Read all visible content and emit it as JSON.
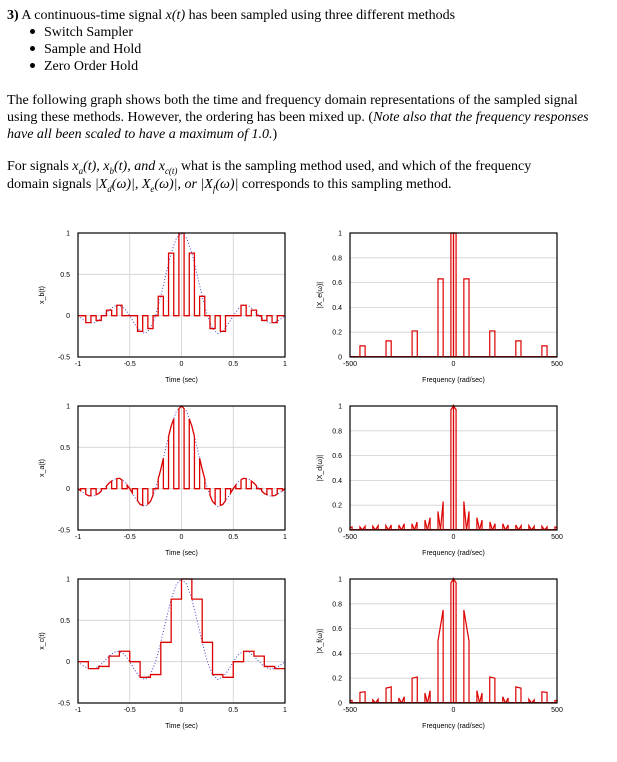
{
  "question": {
    "number": "3)",
    "intro_a": " A continuous-time signal ",
    "intro_math": "x(t)",
    "intro_b": " has been sampled using three different methods",
    "methods": [
      "Switch Sampler",
      "Sample and Hold",
      "Zero Order Hold"
    ],
    "para2_line1": "The following graph shows both the time and frequency domain representations of the sampled signal",
    "para2_line2a": "using these methods. However, the ordering has been mixed up. (",
    "para2_line2b": "Note also that the frequency responses",
    "para2_line3a": "have all been scaled to have a maximum of 1.0.",
    "para2_line3b": ")",
    "para3_line1a": "For signals ",
    "para3_xa": "x",
    "para3_xa_sub": "a",
    "para3_t1": "(t), ",
    "para3_xb": "x",
    "para3_xb_sub": "b",
    "para3_t2": "(t), and ",
    "para3_xc": "x",
    "para3_xc_sub": "c(t)",
    "para3_line1b": " what is the sampling method used, and which of the frequency",
    "para3_line2a": "domain signals ",
    "para3_Xd": "|X",
    "para3_Xd_sub": "d",
    "para3_Xd_end": "(ω)|, ",
    "para3_Xe": "X",
    "para3_Xe_sub": "e",
    "para3_Xe_end": "(ω)|, or ",
    "para3_Xf": "|X",
    "para3_Xf_sub": "f",
    "para3_Xf_end": "(ω)|",
    "para3_line2b": " corresponds to this sampling method."
  },
  "colors": {
    "signal": "#dd0000",
    "reference": "#4444cc",
    "grid": "#d0d0d0"
  },
  "chart_data": [
    {
      "type": "line",
      "id": "xb",
      "method_shape": "flat-top-pulses",
      "ylabel": "x_b(t)",
      "xlabel": "Time (sec)",
      "xlim": [
        -1,
        1
      ],
      "ylim": [
        -0.5,
        1
      ],
      "xticks": [
        "-1",
        "-0.5",
        "0",
        "0.5",
        "1"
      ],
      "yticks": [
        "-0.5",
        "0",
        "0.5",
        "1"
      ],
      "pulse_width": 0.05,
      "sample_t": [
        -1,
        -0.9,
        -0.8,
        -0.7,
        -0.6,
        -0.5,
        -0.4,
        -0.3,
        -0.2,
        -0.1,
        0,
        0.1,
        0.2,
        0.3,
        0.4,
        0.5,
        0.6,
        0.7,
        0.8,
        0.9,
        1
      ],
      "sample_values": [
        0,
        -0.084,
        -0.058,
        0.067,
        0.126,
        0,
        -0.189,
        -0.156,
        0.234,
        0.757,
        1,
        0.757,
        0.234,
        -0.156,
        -0.189,
        0,
        0.126,
        0.067,
        -0.058,
        -0.084,
        0
      ]
    },
    {
      "type": "line",
      "id": "xa",
      "method_shape": "natural-pulses",
      "ylabel": "x_a(t)",
      "xlabel": "Time (sec)",
      "xlim": [
        -1,
        1
      ],
      "ylim": [
        -0.5,
        1
      ],
      "xticks": [
        "-1",
        "-0.5",
        "0",
        "0.5",
        "1"
      ],
      "yticks": [
        "-0.5",
        "0",
        "0.5",
        "1"
      ],
      "pulse_width": 0.05,
      "sample_t": [
        -1,
        -0.9,
        -0.8,
        -0.7,
        -0.6,
        -0.5,
        -0.4,
        -0.3,
        -0.2,
        -0.1,
        0,
        0.1,
        0.2,
        0.3,
        0.4,
        0.5,
        0.6,
        0.7,
        0.8,
        0.9,
        1
      ],
      "sample_values": [
        0,
        -0.084,
        -0.058,
        0.067,
        0.126,
        0,
        -0.189,
        -0.156,
        0.234,
        0.757,
        1,
        0.757,
        0.234,
        -0.156,
        -0.189,
        0,
        0.126,
        0.067,
        -0.058,
        -0.084,
        0
      ]
    },
    {
      "type": "line",
      "id": "xc",
      "method_shape": "staircase",
      "ylabel": "x_c(t)",
      "xlabel": "Time (sec)",
      "xlim": [
        -1,
        1
      ],
      "ylim": [
        -0.5,
        1
      ],
      "xticks": [
        "-1",
        "-0.5",
        "0",
        "0.5",
        "1"
      ],
      "yticks": [
        "-0.5",
        "0",
        "0.5",
        "1"
      ],
      "pulse_width": 0.1,
      "sample_t": [
        -1,
        -0.9,
        -0.8,
        -0.7,
        -0.6,
        -0.5,
        -0.4,
        -0.3,
        -0.2,
        -0.1,
        0,
        0.1,
        0.2,
        0.3,
        0.4,
        0.5,
        0.6,
        0.7,
        0.8,
        0.9,
        1
      ],
      "sample_values": [
        0,
        -0.084,
        -0.058,
        0.067,
        0.126,
        0,
        -0.189,
        -0.156,
        0.234,
        0.757,
        1,
        0.757,
        0.234,
        -0.156,
        -0.189,
        0,
        0.126,
        0.067,
        -0.058,
        -0.084,
        0
      ]
    },
    {
      "type": "area",
      "id": "Xe",
      "ylabel": "|X_e(ω)|",
      "xlabel": "Frequency (rad/sec)",
      "xlim": [
        -500,
        500
      ],
      "ylim": [
        0,
        1
      ],
      "xticks": [
        "-500",
        "0",
        "500"
      ],
      "yticks": [
        "0",
        "0.2",
        "0.4",
        "0.6",
        "0.8",
        "1"
      ],
      "symmetric": true,
      "blocks_positive": [
        [
          0,
          12.5,
          1,
          1
        ],
        [
          50,
          75,
          0.63,
          0.63
        ],
        [
          175,
          200,
          0.21,
          0.21
        ],
        [
          301,
          326,
          0.13,
          0.13
        ],
        [
          427,
          452,
          0.09,
          0.09
        ]
      ]
    },
    {
      "type": "area",
      "id": "Xd",
      "ylabel": "|X_d(ω)|",
      "xlabel": "Frequency (rad/sec)",
      "xlim": [
        -500,
        500
      ],
      "ylim": [
        0,
        1
      ],
      "xticks": [
        "-500",
        "0",
        "500"
      ],
      "yticks": [
        "0",
        "0.2",
        "0.4",
        "0.6",
        "0.8",
        "1"
      ],
      "symmetric": true,
      "blocks_positive": [
        [
          0,
          12.5,
          1,
          0.97
        ],
        [
          50,
          63,
          0.23,
          0
        ],
        [
          63,
          75,
          0,
          0.15
        ],
        [
          113,
          126,
          0.1,
          0
        ],
        [
          126,
          138,
          0,
          0.08
        ],
        [
          176,
          188,
          0.065,
          0
        ],
        [
          188,
          201,
          0,
          0.05
        ],
        [
          238,
          251,
          0.05,
          0
        ],
        [
          251,
          264,
          0,
          0.04
        ],
        [
          301,
          314,
          0.04,
          0
        ],
        [
          314,
          327,
          0,
          0.035
        ],
        [
          364,
          377,
          0.035,
          0
        ],
        [
          377,
          390,
          0,
          0.03
        ],
        [
          427,
          440,
          0.03,
          0
        ],
        [
          440,
          452,
          0,
          0.025
        ],
        [
          490,
          500,
          0.025,
          0.02
        ]
      ]
    },
    {
      "type": "area",
      "id": "Xf",
      "ylabel": "|X_f(ω)|",
      "xlabel": "Frequency (rad/sec)",
      "xlim": [
        -500,
        500
      ],
      "ylim": [
        0,
        1
      ],
      "xticks": [
        "-500",
        "0",
        "500"
      ],
      "yticks": [
        "0",
        "0.2",
        "0.4",
        "0.6",
        "0.8",
        "1"
      ],
      "symmetric": true,
      "blocks_positive": [
        [
          0,
          12.5,
          1,
          0.97
        ],
        [
          50,
          75,
          0.75,
          0.5
        ],
        [
          113,
          126,
          0.1,
          0
        ],
        [
          126,
          138,
          0,
          0.08
        ],
        [
          175,
          200,
          0.21,
          0.2
        ],
        [
          238,
          251,
          0.05,
          0
        ],
        [
          251,
          264,
          0,
          0.04
        ],
        [
          301,
          326,
          0.13,
          0.12
        ],
        [
          364,
          377,
          0.03,
          0
        ],
        [
          377,
          390,
          0,
          0.025
        ],
        [
          427,
          452,
          0.09,
          0.085
        ],
        [
          490,
          500,
          0.02,
          0.02
        ]
      ]
    }
  ],
  "reference_curve": {
    "t": [
      -1,
      -0.95,
      -0.9,
      -0.85,
      -0.8,
      -0.75,
      -0.7,
      -0.65,
      -0.6,
      -0.55,
      -0.5,
      -0.45,
      -0.4,
      -0.35,
      -0.3,
      -0.25,
      -0.2,
      -0.15,
      -0.1,
      -0.05,
      0,
      0.05,
      0.1,
      0.15,
      0.2,
      0.25,
      0.3,
      0.35,
      0.4,
      0.45,
      0.5,
      0.55,
      0.6,
      0.65,
      0.7,
      0.75,
      0.8,
      0.85,
      0.9,
      0.95,
      1
    ],
    "x": [
      0,
      -0.049,
      -0.084,
      -0.089,
      -0.058,
      0,
      0.067,
      0.116,
      0.126,
      0.085,
      0,
      -0.104,
      -0.189,
      -0.216,
      -0.156,
      0,
      0.234,
      0.505,
      0.757,
      0.935,
      1,
      0.935,
      0.757,
      0.505,
      0.234,
      0,
      -0.156,
      -0.216,
      -0.189,
      -0.104,
      0,
      0.085,
      0.126,
      0.116,
      0.067,
      0,
      -0.058,
      -0.089,
      -0.084,
      -0.049,
      0
    ]
  }
}
